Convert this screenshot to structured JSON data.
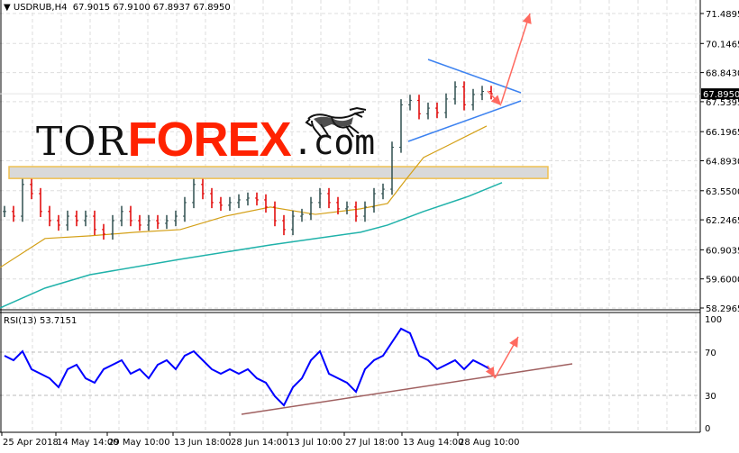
{
  "header": {
    "symbol_line": "USDRUB,H4  67.9015 67.9100 67.8937 67.8950",
    "menu_icon": "triangle-down-icon"
  },
  "rsi_header": "RSI(13) 53.7151",
  "logo": {
    "text_1": "TOR",
    "text_2": "FOREX",
    "text_3": ".com",
    "icon": "bull-icon"
  },
  "colors": {
    "bull_bar": "#2f4f4f",
    "bear_bar": "#e00000",
    "ma_fast": "#d4a017",
    "ma_slow": "#20b2aa",
    "rsi": "#0000ff",
    "triangle": "#3c82f0",
    "arrows": "#ff6a60",
    "rsi_trend": "#a06060",
    "zone": "#f0c050"
  },
  "chart_data": [
    {
      "type": "bar",
      "title": "USDRUB,H4",
      "y_ticks": [
        "71.4895",
        "70.1465",
        "68.8430",
        "67.5395",
        "66.1965",
        "64.8930",
        "63.5500",
        "62.2465",
        "60.9035",
        "59.6000",
        "58.2965"
      ],
      "ylim": [
        58.2965,
        71.4895
      ],
      "current_price": "67.8950",
      "x_tick_labels": [
        {
          "i": 0,
          "label": "25 Apr 2018"
        },
        {
          "i": 6,
          "label": "14 May 14:00"
        },
        {
          "i": 11.7,
          "label": "29 May 10:00"
        },
        {
          "i": 19,
          "label": "13 Jun 18:00"
        },
        {
          "i": 25.3,
          "label": "28 Jun 14:00"
        },
        {
          "i": 31.7,
          "label": "13 Jul 10:00"
        },
        {
          "i": 38,
          "label": "27 Jul 18:00"
        },
        {
          "i": 44.4,
          "label": "13 Aug 14:00"
        },
        {
          "i": 50.6,
          "label": "28 Aug 10:00"
        }
      ],
      "close": [
        62.62,
        62.41,
        63.83,
        63.42,
        62.62,
        62.21,
        62.01,
        62.41,
        62.21,
        62.41,
        61.81,
        61.61,
        62.21,
        62.62,
        62.21,
        62.01,
        62.21,
        62.09,
        62.21,
        62.41,
        63.02,
        63.83,
        63.42,
        63.02,
        62.9,
        63.02,
        63.14,
        63.22,
        63.14,
        62.82,
        62.21,
        61.81,
        62.41,
        62.49,
        63.02,
        63.42,
        63.02,
        62.74,
        62.82,
        62.41,
        62.82,
        63.42,
        63.62,
        65.5,
        67.4,
        67.6,
        67.0,
        67.25,
        67.05,
        67.66,
        68.2,
        67.4,
        67.86,
        68.0,
        67.895
      ],
      "ma_fast": [
        [
          -0.5,
          60.11
        ],
        [
          4.5,
          61.41
        ],
        [
          9.5,
          61.53
        ],
        [
          14.5,
          61.69
        ],
        [
          19.5,
          61.81
        ],
        [
          24.5,
          62.41
        ],
        [
          29.5,
          62.82
        ],
        [
          34.5,
          62.49
        ],
        [
          39.5,
          62.74
        ],
        [
          42.5,
          62.98
        ],
        [
          44.5,
          64.03
        ],
        [
          46.5,
          65.04
        ],
        [
          49.5,
          65.64
        ],
        [
          53.5,
          66.45
        ]
      ],
      "ma_slow": [
        [
          -0.5,
          58.3
        ],
        [
          4.5,
          59.19
        ],
        [
          9.5,
          59.79
        ],
        [
          19.5,
          60.48
        ],
        [
          29.5,
          61.12
        ],
        [
          34.5,
          61.41
        ],
        [
          39.5,
          61.69
        ],
        [
          42.5,
          62.01
        ],
        [
          46.5,
          62.62
        ],
        [
          51.5,
          63.3
        ],
        [
          55.2,
          63.91
        ]
      ],
      "resistance_zone": [
        64.1,
        64.63
      ]
    },
    {
      "type": "line",
      "title": "RSI(13)",
      "ylim": [
        0,
        100
      ],
      "y_ticks": [
        "100",
        "70",
        "30",
        "0"
      ],
      "values": [
        66.7,
        62.5,
        70.8,
        54.2,
        50,
        45.8,
        37.5,
        54.2,
        58.3,
        45.8,
        41.7,
        54.2,
        58.3,
        62.5,
        50,
        54.2,
        45.8,
        58.3,
        62.5,
        54.2,
        66.7,
        70.8,
        62.5,
        54.2,
        50,
        54.2,
        50,
        54.2,
        45.8,
        41.7,
        29.2,
        20.8,
        37.5,
        45.8,
        62.5,
        70.8,
        50,
        45.8,
        41.7,
        33.3,
        54.2,
        62.5,
        66.7,
        79.2,
        91.7,
        87.5,
        66.7,
        62.5,
        54.2,
        58.3,
        62.5,
        54.2,
        62.5,
        58.3,
        53.7
      ]
    }
  ]
}
